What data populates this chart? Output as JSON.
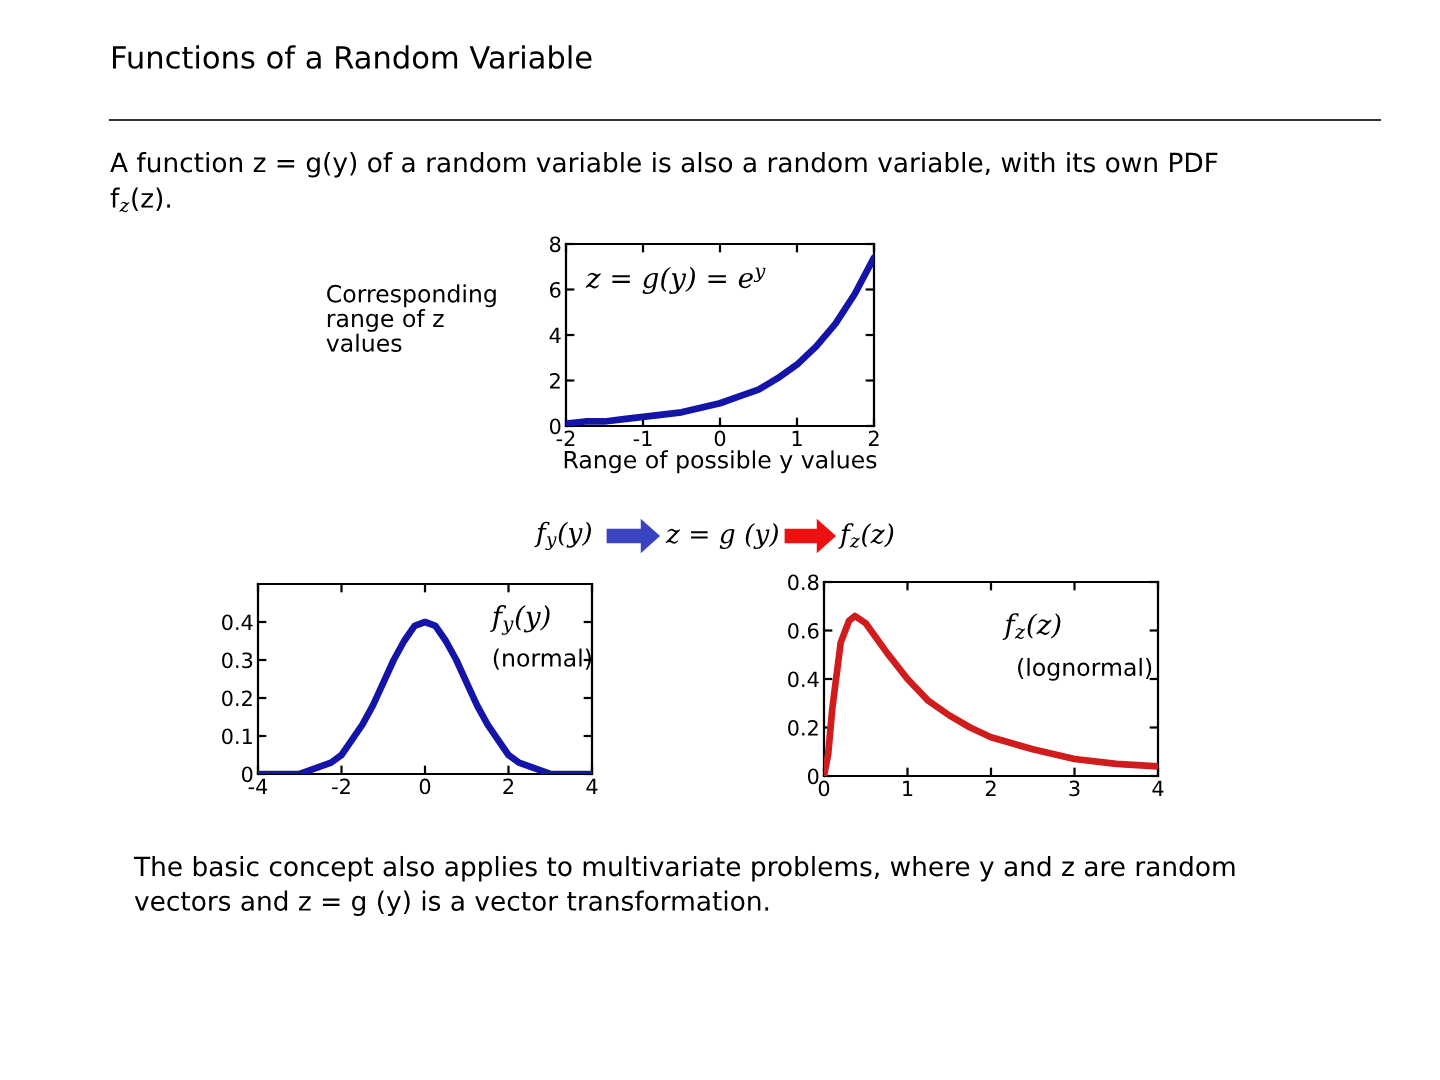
{
  "chart_data": [
    {
      "type": "line",
      "title": "Functions of a Random Variable",
      "subtitle": "A function z = g(y) of a random variable is also a random variable, with its own PDF\nf$_{z}$(z).",
      "xlabel": "Range of possible y values",
      "ylabel": "Corresponding\nrange of z\nvalues",
      "annotations": [
        "z = g(y) = e$^{y}$",
        "f$_{y}$(y)",
        "z = g (y)",
        "f$_{z}$(z)",
        "The basic concept also applies to multivariate problems, where y and z are random\nvectors and z = g (y) is a vector transformation."
      ],
      "x": [
        -2,
        -1.75,
        -1.5,
        -1.25,
        -1,
        -0.75,
        -0.5,
        -0.25,
        0,
        0.25,
        0.5,
        0.75,
        1,
        1.25,
        1.5,
        1.75,
        2
      ],
      "series": [
        {
          "color": "#1414a8",
          "values": [
            0.1,
            0.2,
            0.2,
            0.3,
            0.4,
            0.5,
            0.6,
            0.8,
            1.0,
            1.3,
            1.6,
            2.1,
            2.7,
            3.5,
            4.5,
            5.8,
            7.4
          ]
        }
      ],
      "xlim": [
        -2,
        2
      ],
      "xticks": [
        -2,
        -1,
        0,
        1,
        2
      ],
      "ylim": [
        0,
        8
      ],
      "yticks": [
        0,
        2,
        4,
        6,
        8
      ]
    },
    {
      "type": "line",
      "annotations": [
        "f$_{y}$(y)",
        "(normal)"
      ],
      "x": [
        -4,
        -3.5,
        -3,
        -2.75,
        -2.5,
        -2.25,
        -2,
        -1.75,
        -1.5,
        -1.25,
        -1,
        -0.75,
        -0.5,
        -0.25,
        0,
        0.25,
        0.5,
        0.75,
        1,
        1.25,
        1.5,
        1.75,
        2,
        2.25,
        2.5,
        2.75,
        3,
        3.5,
        4
      ],
      "series": [
        {
          "color": "#1414a8",
          "values": [
            0.0,
            0.0,
            0.0,
            0.01,
            0.02,
            0.03,
            0.05,
            0.09,
            0.13,
            0.18,
            0.24,
            0.3,
            0.35,
            0.39,
            0.4,
            0.39,
            0.35,
            0.3,
            0.24,
            0.18,
            0.13,
            0.09,
            0.05,
            0.03,
            0.02,
            0.01,
            0.0,
            0.0,
            0.0
          ]
        }
      ],
      "xlim": [
        -4,
        4
      ],
      "xticks": [
        -4,
        -2,
        0,
        2,
        4
      ],
      "ylim": [
        0,
        0.5
      ],
      "yticks": [
        0,
        0.1,
        0.2,
        0.3,
        0.4
      ]
    },
    {
      "type": "line",
      "annotations": [
        "f$_{z}$(z)",
        "(lognormal)"
      ],
      "x": [
        0,
        0.05,
        0.1,
        0.2,
        0.3,
        0.37,
        0.5,
        0.75,
        1,
        1.25,
        1.5,
        1.75,
        2,
        2.5,
        3,
        3.5,
        4
      ],
      "series": [
        {
          "color": "#d01c1c",
          "values": [
            0.0,
            0.09,
            0.28,
            0.55,
            0.64,
            0.66,
            0.63,
            0.51,
            0.4,
            0.31,
            0.25,
            0.2,
            0.16,
            0.11,
            0.07,
            0.05,
            0.04
          ]
        }
      ],
      "xlim": [
        0,
        4
      ],
      "xticks": [
        0,
        1,
        2,
        3,
        4
      ],
      "ylim": [
        0,
        0.8
      ],
      "yticks": [
        0,
        0.2,
        0.4,
        0.6,
        0.8
      ]
    }
  ]
}
